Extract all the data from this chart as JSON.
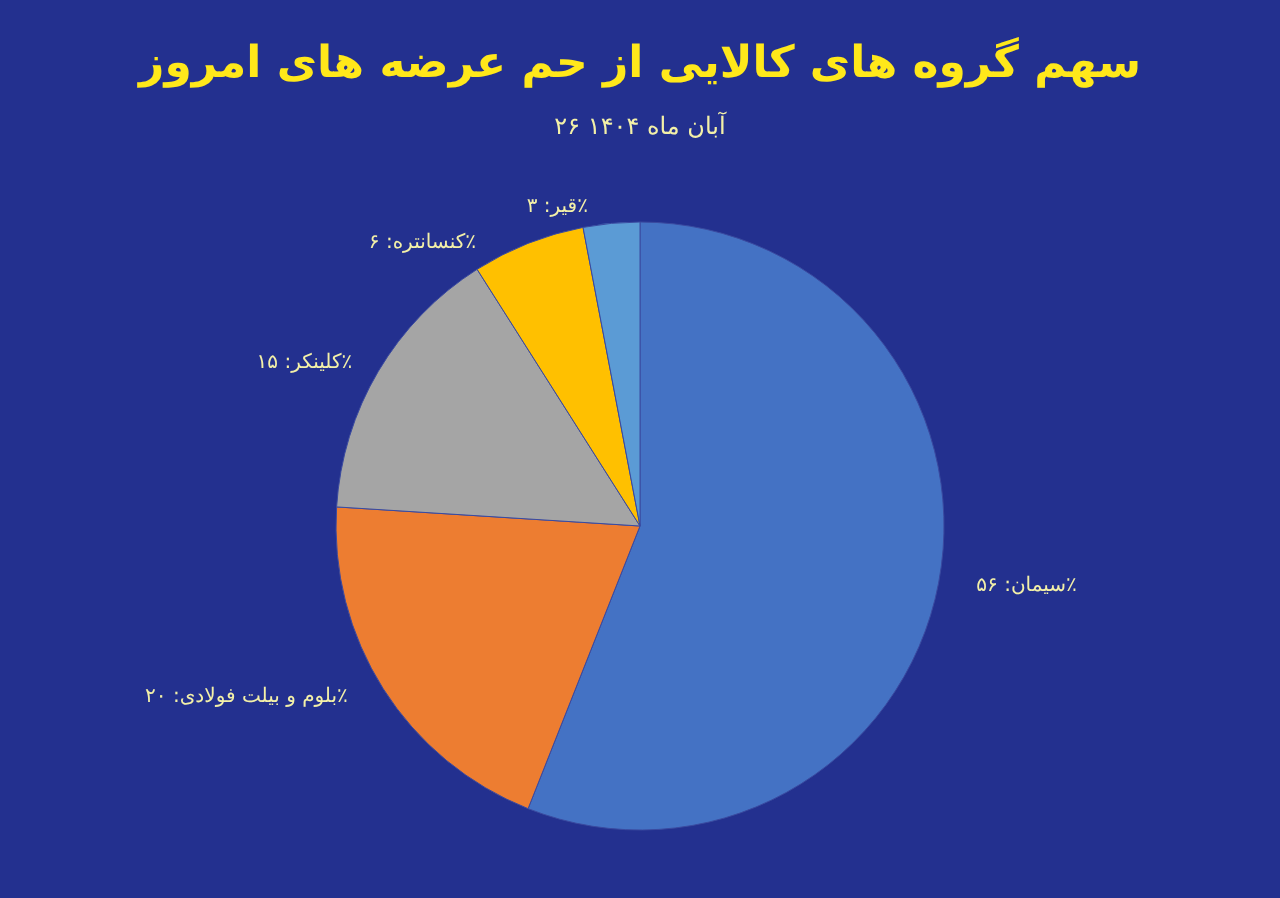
{
  "chart_data": {
    "type": "pie",
    "title": "سهم گروه های کالایی از حم عرضه های امروز",
    "subtitle": "۲۶ آبان ماه ۱۴۰۴",
    "categories": [
      "سیمان",
      "بلوم و بیلت فولادی",
      "کلینکر",
      "کنسانتره",
      "قیر"
    ],
    "values": [
      56,
      20,
      15,
      6,
      3
    ],
    "value_labels": [
      "۵۶٪",
      "۲۰٪",
      "۱۵٪",
      "۶٪",
      "۳٪"
    ],
    "colors": [
      "#4472c4",
      "#ed7d31",
      "#a5a5a5",
      "#ffc000",
      "#5b9bd5"
    ],
    "legend": false
  }
}
